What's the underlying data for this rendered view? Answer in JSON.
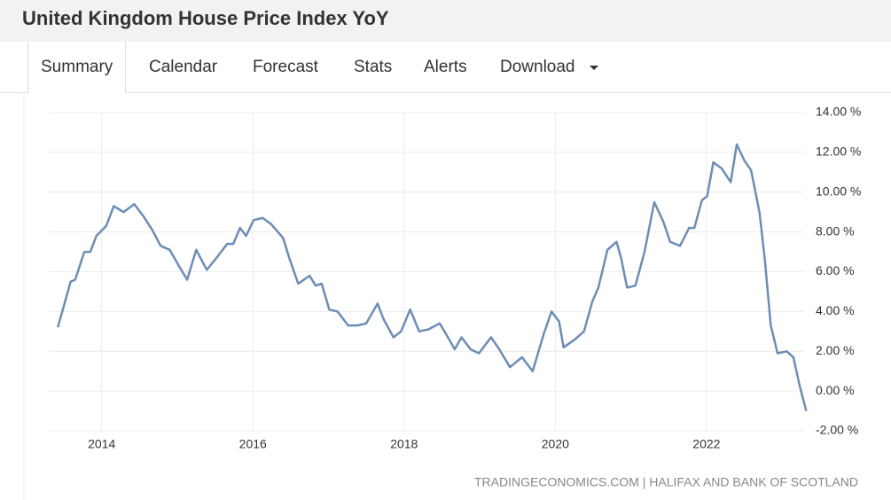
{
  "header": {
    "title": "United Kingdom House Price Index YoY"
  },
  "tabs": [
    "Summary",
    "Calendar",
    "Forecast",
    "Stats",
    "Alerts",
    "Download"
  ],
  "chart_data": {
    "type": "line",
    "source": "TRADINGECONOMICS.COM | HALIFAX AND BANK OF SCOTLAND",
    "xlim": [
      2013.3,
      2023.35
    ],
    "xticks": [
      2014,
      2016,
      2018,
      2020,
      2022
    ],
    "ylim": [
      -2,
      14
    ],
    "yticks": [
      {
        "value": -2,
        "label": "-2.00 %"
      },
      {
        "value": 0,
        "label": "0.00 %"
      },
      {
        "value": 2,
        "label": "2.00 %"
      },
      {
        "value": 4,
        "label": "4.00 %"
      },
      {
        "value": 6,
        "label": "6.00 %"
      },
      {
        "value": 8,
        "label": "8.00 %"
      },
      {
        "value": 10,
        "label": "10.00 %"
      },
      {
        "value": 12,
        "label": "12.00 %"
      },
      {
        "value": 14,
        "label": "14.00 %"
      }
    ],
    "grid": true,
    "x": [
      2013.42,
      2013.59,
      2013.65,
      2013.77,
      2013.85,
      2013.93,
      2014.06,
      2014.16,
      2014.29,
      2014.43,
      2014.55,
      2014.67,
      2014.78,
      2014.9,
      2015.02,
      2015.13,
      2015.25,
      2015.39,
      2015.52,
      2015.66,
      2015.74,
      2015.83,
      2015.91,
      2016.01,
      2016.13,
      2016.24,
      2016.4,
      2016.48,
      2016.6,
      2016.75,
      2016.83,
      2016.91,
      2017.01,
      2017.12,
      2017.26,
      2017.38,
      2017.5,
      2017.65,
      2017.73,
      2017.86,
      2017.96,
      2018.08,
      2018.2,
      2018.32,
      2018.47,
      2018.55,
      2018.67,
      2018.76,
      2018.88,
      2018.99,
      2019.15,
      2019.26,
      2019.4,
      2019.56,
      2019.7,
      2019.85,
      2019.95,
      2020.05,
      2020.11,
      2020.26,
      2020.38,
      2020.49,
      2020.57,
      2020.69,
      2020.81,
      2020.87,
      2020.95,
      2021.06,
      2021.18,
      2021.31,
      2021.43,
      2021.52,
      2021.65,
      2021.77,
      2021.84,
      2021.94,
      2022.01,
      2022.09,
      2022.2,
      2022.32,
      2022.4,
      2022.5,
      2022.59,
      2022.7,
      2022.77,
      2022.85,
      2022.94,
      2023.06,
      2023.15,
      2023.23,
      2023.32
    ],
    "series": [
      {
        "name": "House Price Index YoY",
        "color": "#6d8db5",
        "values": [
          3.2,
          5.5,
          5.6,
          7.0,
          7.0,
          7.8,
          8.3,
          9.3,
          9.0,
          9.4,
          8.8,
          8.1,
          7.3,
          7.1,
          6.3,
          5.6,
          7.1,
          6.1,
          6.7,
          7.4,
          7.4,
          8.2,
          7.8,
          8.6,
          8.7,
          8.4,
          7.7,
          6.7,
          5.4,
          5.8,
          5.3,
          5.4,
          4.1,
          4.0,
          3.3,
          3.3,
          3.4,
          4.4,
          3.6,
          2.7,
          3.0,
          4.1,
          3.0,
          3.1,
          3.4,
          2.9,
          2.1,
          2.7,
          2.1,
          1.9,
          2.7,
          2.1,
          1.2,
          1.7,
          1.0,
          2.9,
          4.0,
          3.5,
          2.2,
          2.6,
          3.0,
          4.5,
          5.2,
          7.1,
          7.5,
          6.7,
          5.2,
          5.3,
          7.0,
          9.5,
          8.5,
          7.5,
          7.3,
          8.2,
          8.2,
          9.6,
          9.8,
          11.5,
          11.2,
          10.5,
          12.4,
          11.6,
          11.1,
          9.0,
          6.7,
          3.3,
          1.9,
          2.0,
          1.7,
          0.3,
          -1.0
        ]
      }
    ]
  }
}
